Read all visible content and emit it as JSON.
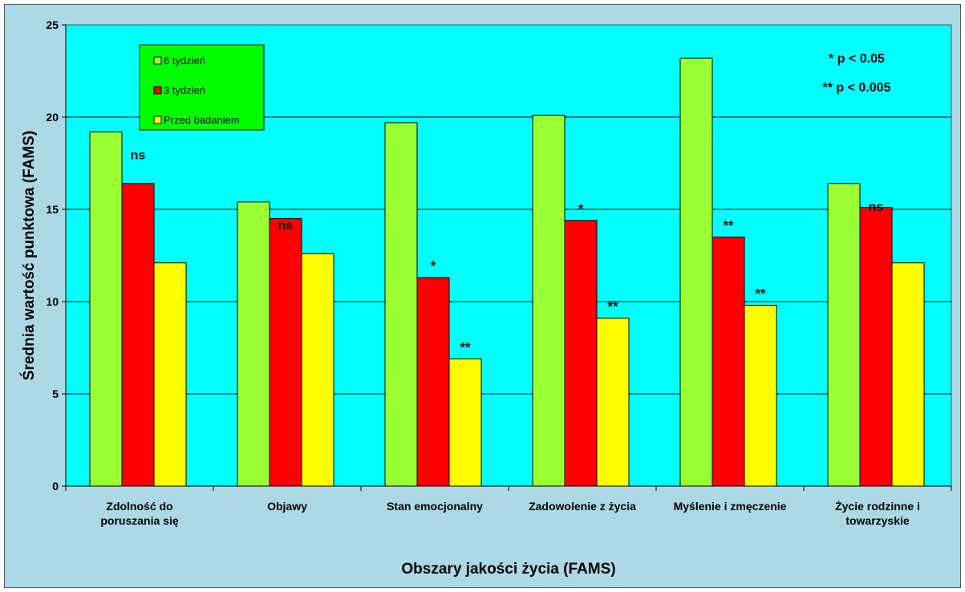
{
  "colors": {
    "background": "#add8e6",
    "plot_area": "#00ffff",
    "legend_bg": "#00ff00",
    "series": [
      "#99ff33",
      "#ff0000",
      "#ffff00"
    ]
  },
  "chart_data": {
    "type": "bar",
    "title": "",
    "xlabel": "Obszary jakości życia (FAMS)",
    "ylabel": "Średnia wartość punktowa (FAMS)",
    "ylim": [
      0,
      25
    ],
    "yticks": [
      0,
      5,
      10,
      15,
      20,
      25
    ],
    "grid": true,
    "legend_position": "top-left",
    "categories": [
      [
        "Zdolność do",
        "poruszania się"
      ],
      [
        "Objawy"
      ],
      [
        "Stan emocjonalny"
      ],
      [
        "Zadowolenie z życia"
      ],
      [
        "Myślenie i zmęczenie"
      ],
      [
        "Życie rodzinne i",
        "towarzyskie"
      ]
    ],
    "series": [
      {
        "name": "6 tydzień",
        "values": [
          19.2,
          15.4,
          19.7,
          20.1,
          23.2,
          16.4
        ]
      },
      {
        "name": "3 tydzień",
        "values": [
          16.4,
          14.5,
          11.3,
          14.4,
          13.5,
          15.1
        ]
      },
      {
        "name": "Przed badaniem",
        "values": [
          12.1,
          12.6,
          6.9,
          9.1,
          9.8,
          12.1
        ]
      }
    ],
    "significance": [
      [
        "",
        "ns",
        ""
      ],
      [
        "",
        "ns",
        ""
      ],
      [
        "",
        "*",
        "**"
      ],
      [
        "",
        "*",
        "**"
      ],
      [
        "",
        "**",
        "**"
      ],
      [
        "",
        "ns",
        ""
      ]
    ],
    "annotations": [
      "* p < 0.05",
      "** p < 0.005"
    ]
  }
}
